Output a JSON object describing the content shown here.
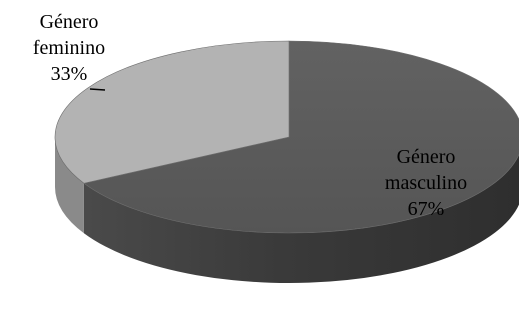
{
  "chart_data": {
    "type": "pie",
    "style": "3d",
    "title": "",
    "slices": [
      {
        "label_lines": [
          "Género",
          "masculino"
        ],
        "percent_label": "67%",
        "value": 67,
        "color": "#5a5a5a",
        "side_color": "#3e3e3e"
      },
      {
        "label_lines": [
          "Género",
          "feminino"
        ],
        "percent_label": "33%",
        "value": 33,
        "color": "#b3b3b3",
        "side_color": "#8a8a8a"
      }
    ],
    "legend": "none",
    "grid": false
  }
}
